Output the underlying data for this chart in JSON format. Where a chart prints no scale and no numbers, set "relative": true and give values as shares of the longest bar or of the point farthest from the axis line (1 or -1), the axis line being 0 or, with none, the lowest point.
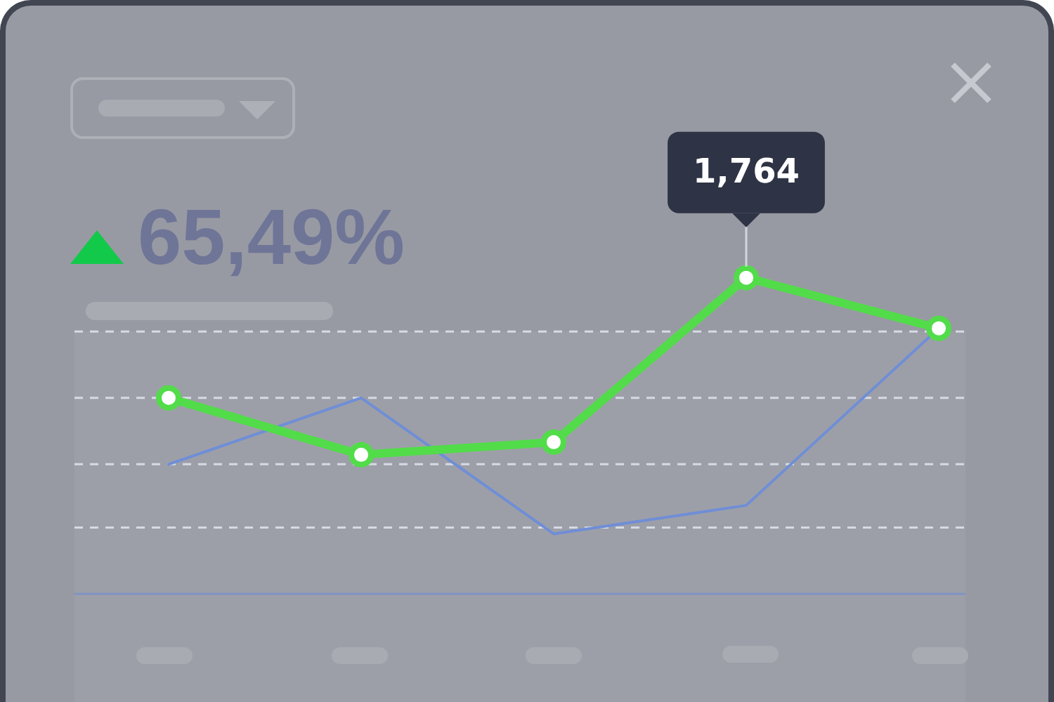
{
  "chart_data": {
    "type": "line",
    "relative": true,
    "categories": [
      null,
      null,
      null,
      null,
      null
    ],
    "legend": false,
    "annotations": [
      "65,49%",
      "1,764"
    ],
    "series": [
      {
        "color": "#6f8ed6",
        "marker": "none",
        "values": [
          0.41,
          0.62,
          0.19,
          0.28,
          0.84
        ]
      },
      {
        "color": "#52dc4a",
        "marker": "circle",
        "values": [
          0.62,
          0.44,
          0.48,
          1,
          0.84
        ]
      }
    ],
    "ref_lines": [
      {
        "axis": "y",
        "value": 0.21,
        "color": "#d5dbe4",
        "line_style": "dashed"
      },
      {
        "axis": "y",
        "value": 0.41,
        "color": "#d5dbe4",
        "line_style": "dashed"
      },
      {
        "axis": "y",
        "value": 0.62,
        "color": "#d5dbe4",
        "line_style": "dashed"
      },
      {
        "axis": "y",
        "value": 0.83,
        "color": "#d5dbe4",
        "line_style": "dashed"
      }
    ]
  }
}
